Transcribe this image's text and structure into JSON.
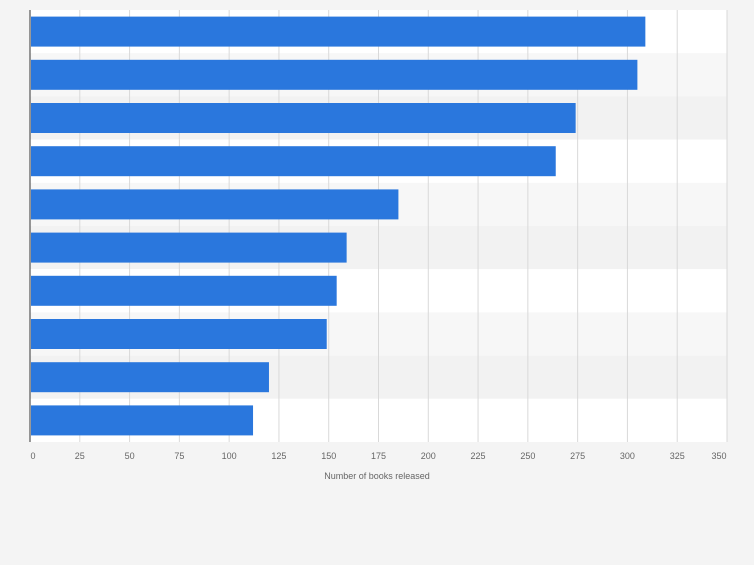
{
  "chart_data": {
    "type": "bar",
    "orientation": "horizontal",
    "categories": [
      "",
      "",
      "",
      "",
      "",
      "",
      "",
      "",
      "",
      ""
    ],
    "values": [
      309,
      305,
      274,
      264,
      185,
      159,
      154,
      149,
      120,
      112
    ],
    "xlabel": "Number of books released",
    "xlim": [
      0,
      350
    ],
    "xticks": [
      0,
      25,
      50,
      75,
      100,
      125,
      150,
      175,
      200,
      225,
      250,
      275,
      300,
      325,
      350
    ],
    "grid": true,
    "bar_color": "#2a77dd",
    "band_colors": [
      "#ffffff",
      "#f7f7f7",
      "#f2f2f2"
    ],
    "gridline_color": "#d9d9d9",
    "tick_label_color": "#666666",
    "axis_line_color": "#333333"
  }
}
